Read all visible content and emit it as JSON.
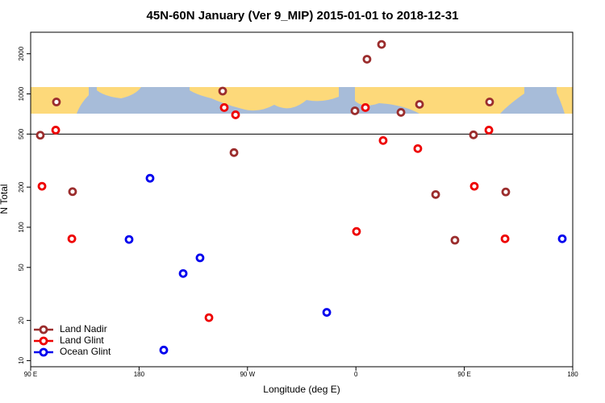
{
  "chart_data": {
    "type": "scatter",
    "title": "45N-60N January (Ver 9_MIP)   2015-01-01 to 2018-12-31",
    "x_label": "Longitude (deg E)",
    "y_label": "N Total",
    "xlim": [
      90,
      540
    ],
    "xticks": [
      {
        "value": 90,
        "label": "90 E"
      },
      {
        "value": 180,
        "label": "180"
      },
      {
        "value": 270,
        "label": "90 W"
      },
      {
        "value": 360,
        "label": "0"
      },
      {
        "value": 450,
        "label": "90 E"
      },
      {
        "value": 540,
        "label": "180"
      }
    ],
    "ylim": [
      9,
      2900
    ],
    "y_log": true,
    "yticks": [
      10,
      20,
      50,
      100,
      200,
      500,
      1000,
      2000
    ],
    "reference_line": 500,
    "legend": "bottom-left",
    "series": [
      {
        "name": "Land Nadir",
        "color": "#9b2d2d",
        "x": [
          98,
          111.4,
          124.8,
          249.4,
          258.8,
          369.2,
          381.3,
          359.2,
          397.4,
          412.8,
          426.2,
          442.2,
          457.6,
          471,
          484.4
        ],
        "values": [
          490,
          870,
          185,
          1050,
          363,
          1820,
          2350,
          747,
          727,
          835,
          176,
          80,
          493,
          870,
          184
        ]
      },
      {
        "name": "Land Glint",
        "color": "#ee0000",
        "x": [
          99.4,
          110.8,
          124.2,
          250.7,
          260.1,
          238,
          367.9,
          382.6,
          411.4,
          360.5,
          458.3,
          470.4,
          483.8
        ],
        "values": [
          203,
          535,
          82,
          790,
          697,
          21,
          790,
          447,
          389,
          93,
          203,
          535,
          82
        ]
      },
      {
        "name": "Ocean Glint",
        "color": "#0000ee",
        "x": [
          171.7,
          189.1,
          200.5,
          216.6,
          230.6,
          335.8,
          531.3
        ],
        "values": [
          81,
          233,
          12,
          45,
          59,
          23,
          82
        ]
      }
    ]
  }
}
